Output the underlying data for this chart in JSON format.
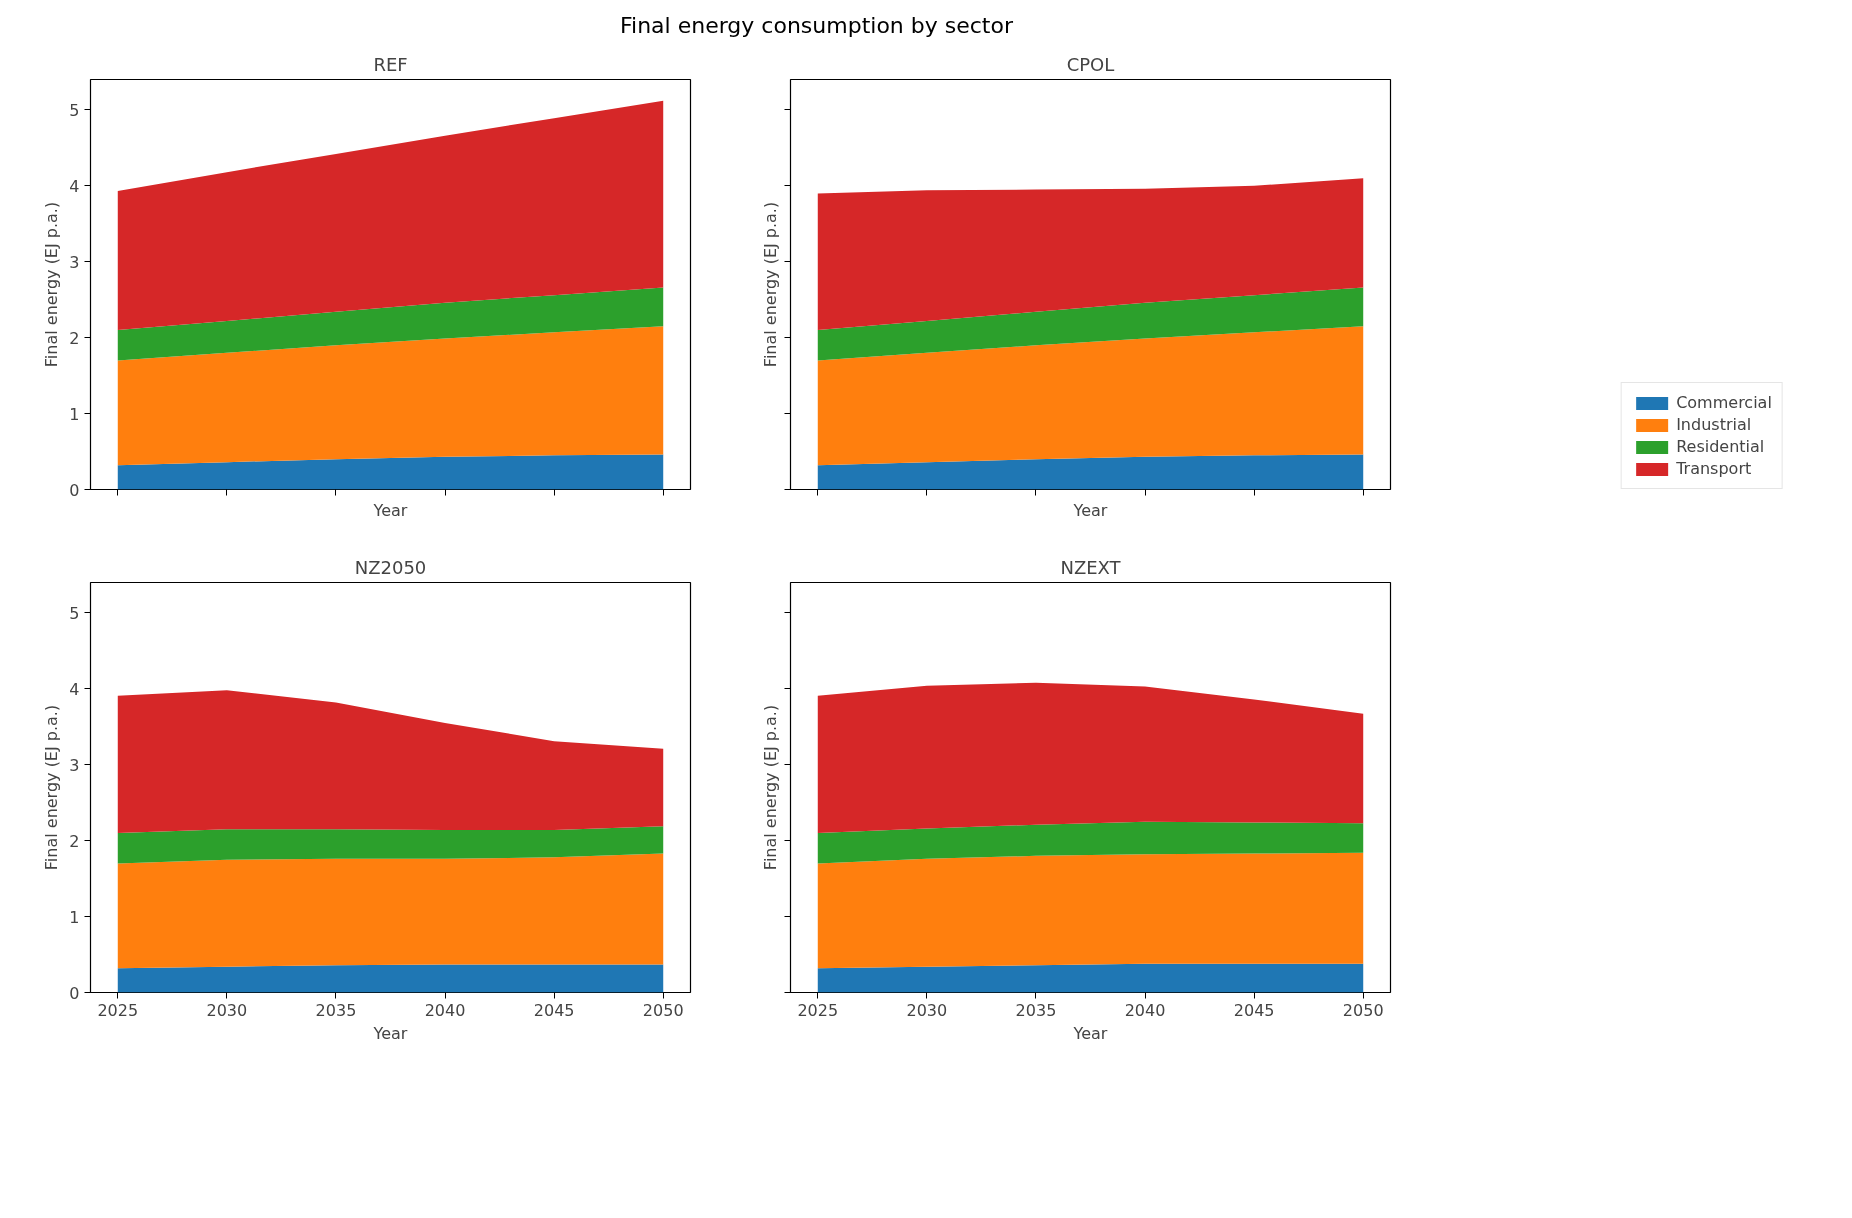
{
  "chart_data": [
    {
      "type": "area",
      "title": "REF",
      "xlabel": "Year",
      "ylabel": "Final energy (EJ p.a.)",
      "stacked": true,
      "annotations": [
        "Final energy consumption by sector"
      ],
      "x": [
        2025,
        2030,
        2035,
        2040,
        2045,
        2050
      ],
      "xlim": [
        2023.75,
        2051.25
      ],
      "ylim": [
        0,
        5.4
      ],
      "xticks": [
        2025,
        2030,
        2035,
        2040,
        2045,
        2050
      ],
      "yticks": [
        0,
        1,
        2,
        3,
        4,
        5
      ],
      "tick_labels": "y",
      "grid": false,
      "legend": false,
      "series": [
        {
          "color": "#1f77b4",
          "values": [
            0.32,
            0.36,
            0.4,
            0.43,
            0.45,
            0.46
          ]
        },
        {
          "color": "#ff7f0e",
          "values": [
            1.38,
            1.44,
            1.5,
            1.56,
            1.62,
            1.69
          ]
        },
        {
          "color": "#2ca02c",
          "values": [
            0.4,
            0.42,
            0.44,
            0.47,
            0.49,
            0.51
          ]
        },
        {
          "color": "#d62728",
          "values": [
            1.83,
            1.96,
            2.08,
            2.2,
            2.33,
            2.46
          ]
        }
      ]
    },
    {
      "type": "area",
      "title": "CPOL",
      "xlabel": "Year",
      "ylabel": "Final energy (EJ p.a.)",
      "stacked": true,
      "x": [
        2025,
        2030,
        2035,
        2040,
        2045,
        2050
      ],
      "xlim": [
        2023.75,
        2051.25
      ],
      "ylim": [
        0,
        5.4
      ],
      "xticks": [
        2025,
        2030,
        2035,
        2040,
        2045,
        2050
      ],
      "yticks": [
        0,
        1,
        2,
        3,
        4,
        5
      ],
      "tick_labels": false,
      "grid": false,
      "legend": "right",
      "series": [
        {
          "name": "Commercial",
          "color": "#1f77b4",
          "values": [
            0.32,
            0.36,
            0.4,
            0.43,
            0.45,
            0.46
          ]
        },
        {
          "name": "Industrial",
          "color": "#ff7f0e",
          "values": [
            1.38,
            1.44,
            1.5,
            1.56,
            1.62,
            1.69
          ]
        },
        {
          "name": "Residential",
          "color": "#2ca02c",
          "values": [
            0.4,
            0.42,
            0.44,
            0.47,
            0.49,
            0.51
          ]
        },
        {
          "name": "Transport",
          "color": "#d62728",
          "values": [
            1.8,
            1.72,
            1.61,
            1.5,
            1.44,
            1.44
          ]
        }
      ]
    },
    {
      "type": "area",
      "title": "NZ2050",
      "xlabel": "Year",
      "ylabel": "Final energy (EJ p.a.)",
      "stacked": true,
      "x": [
        2025,
        2030,
        2035,
        2040,
        2045,
        2050
      ],
      "xlim": [
        2023.75,
        2051.25
      ],
      "ylim": [
        0,
        5.4
      ],
      "xticks": [
        2025,
        2030,
        2035,
        2040,
        2045,
        2050
      ],
      "yticks": [
        0,
        1,
        2,
        3,
        4,
        5
      ],
      "grid": false,
      "legend": false,
      "series": [
        {
          "color": "#1f77b4",
          "values": [
            0.32,
            0.34,
            0.36,
            0.37,
            0.37,
            0.37
          ]
        },
        {
          "color": "#ff7f0e",
          "values": [
            1.38,
            1.41,
            1.4,
            1.39,
            1.41,
            1.46
          ]
        },
        {
          "color": "#2ca02c",
          "values": [
            0.4,
            0.4,
            0.39,
            0.38,
            0.36,
            0.36
          ]
        },
        {
          "color": "#d62728",
          "values": [
            1.81,
            1.83,
            1.67,
            1.41,
            1.17,
            1.02
          ]
        }
      ]
    },
    {
      "type": "area",
      "title": "NZEXT",
      "xlabel": "Year",
      "ylabel": "Final energy (EJ p.a.)",
      "stacked": true,
      "x": [
        2025,
        2030,
        2035,
        2040,
        2045,
        2050
      ],
      "xlim": [
        2023.75,
        2051.25
      ],
      "ylim": [
        0,
        5.4
      ],
      "xticks": [
        2025,
        2030,
        2035,
        2040,
        2045,
        2050
      ],
      "yticks": [
        0,
        1,
        2,
        3,
        4,
        5
      ],
      "tick_labels": "x",
      "grid": false,
      "legend": false,
      "series": [
        {
          "color": "#1f77b4",
          "values": [
            0.32,
            0.34,
            0.36,
            0.38,
            0.38,
            0.38
          ]
        },
        {
          "color": "#ff7f0e",
          "values": [
            1.38,
            1.42,
            1.44,
            1.44,
            1.45,
            1.46
          ]
        },
        {
          "color": "#2ca02c",
          "values": [
            0.4,
            0.4,
            0.41,
            0.43,
            0.41,
            0.39
          ]
        },
        {
          "color": "#d62728",
          "values": [
            1.81,
            1.88,
            1.87,
            1.78,
            1.62,
            1.44
          ]
        }
      ]
    }
  ]
}
